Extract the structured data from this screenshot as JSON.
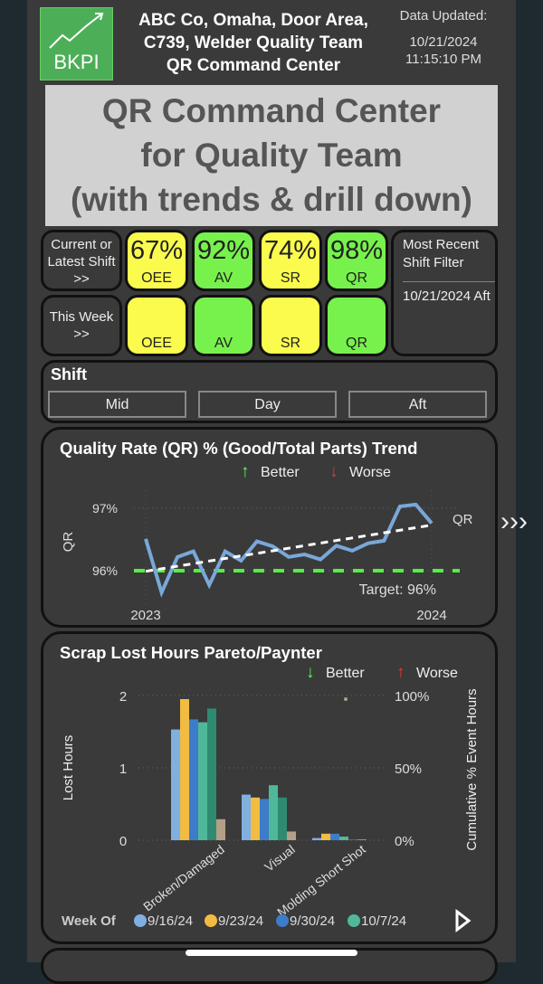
{
  "header": {
    "logo_text": "BKPI",
    "title_lines": [
      "ABC Co, Omaha, Door Area,",
      "C739, Welder Quality Team",
      "QR Command Center"
    ],
    "updated_label": "Data Updated:",
    "updated_date": "10/21/2024",
    "updated_time": "11:15:10 PM"
  },
  "kpi": {
    "row1_label": "Current or Latest Shift >>",
    "row2_label": "This Week >>",
    "row1": [
      {
        "value": "67%",
        "label": "OEE",
        "color": "#fbfb4e"
      },
      {
        "value": "92%",
        "label": "AV",
        "color": "#77f24c"
      },
      {
        "value": "74%",
        "label": "SR",
        "color": "#fbfb4e"
      },
      {
        "value": "98%",
        "label": "QR",
        "color": "#77f24c"
      }
    ],
    "row2": [
      {
        "label": "OEE"
      },
      {
        "label": "AV"
      },
      {
        "label": "SR"
      },
      {
        "label": "QR"
      }
    ],
    "filter_label": "Most Recent Shift Filter",
    "filter_value": "10/21/2024 Aft"
  },
  "overlay": {
    "lines": [
      "QR Command Center",
      "for Quality Team",
      "(with trends & drill down)"
    ]
  },
  "shift": {
    "title": "Shift",
    "options": [
      "Mid",
      "Day",
      "Aft"
    ]
  },
  "chart_data": [
    {
      "type": "line",
      "title": "Quality Rate (QR) % (Good/Total Parts) Trend",
      "legend": {
        "better": "Better",
        "worse": "Worse"
      },
      "ylabel": "QR",
      "yticks": [
        "96%",
        "97%"
      ],
      "ylim": [
        95.5,
        97.3
      ],
      "xlabels": [
        "2023",
        "2024"
      ],
      "series": [
        {
          "name": "QR",
          "values": [
            96.51,
            95.65,
            96.22,
            96.31,
            95.77,
            96.31,
            96.16,
            96.47,
            96.39,
            96.22,
            96.26,
            96.18,
            96.4,
            96.32,
            96.44,
            96.48,
            97.03,
            97.06,
            96.76
          ]
        }
      ],
      "trend": [
        95.99,
        96.73
      ],
      "target": {
        "value": 96,
        "label": "Target: 96%"
      }
    },
    {
      "type": "bar",
      "title": "Scrap Lost Hours Pareto/Paynter",
      "legend": {
        "better": "Better",
        "worse": "Worse",
        "title": "Week Of"
      },
      "ylabel": "Lost Hours",
      "y2label": "Cumulative % Event Hours",
      "yticks": [
        "0",
        "1",
        "2"
      ],
      "y2ticks": [
        "0%",
        "50%",
        "100%"
      ],
      "ylim": [
        0,
        2
      ],
      "categories": [
        "Broken/Damaged",
        "Visual",
        "Molding Short Shot"
      ],
      "series": [
        {
          "name": "9/16/24",
          "color": "#7fb0e0",
          "values": [
            1.53,
            0.63,
            0.03
          ]
        },
        {
          "name": "9/23/24",
          "color": "#f2bc42",
          "values": [
            1.95,
            0.59,
            0.09
          ]
        },
        {
          "name": "9/30/24",
          "color": "#3d7cc9",
          "values": [
            1.67,
            0.57,
            0.09
          ]
        },
        {
          "name": "10/7/24",
          "color": "#4fb89a",
          "values": [
            1.63,
            0.76,
            0.05
          ]
        },
        {
          "name": "",
          "color": "#2f8a72",
          "values": [
            1.82,
            0.59,
            0.01
          ]
        },
        {
          "name": "",
          "color": "#b3a086",
          "values": [
            0.29,
            0.12,
            0.01
          ]
        }
      ]
    }
  ]
}
